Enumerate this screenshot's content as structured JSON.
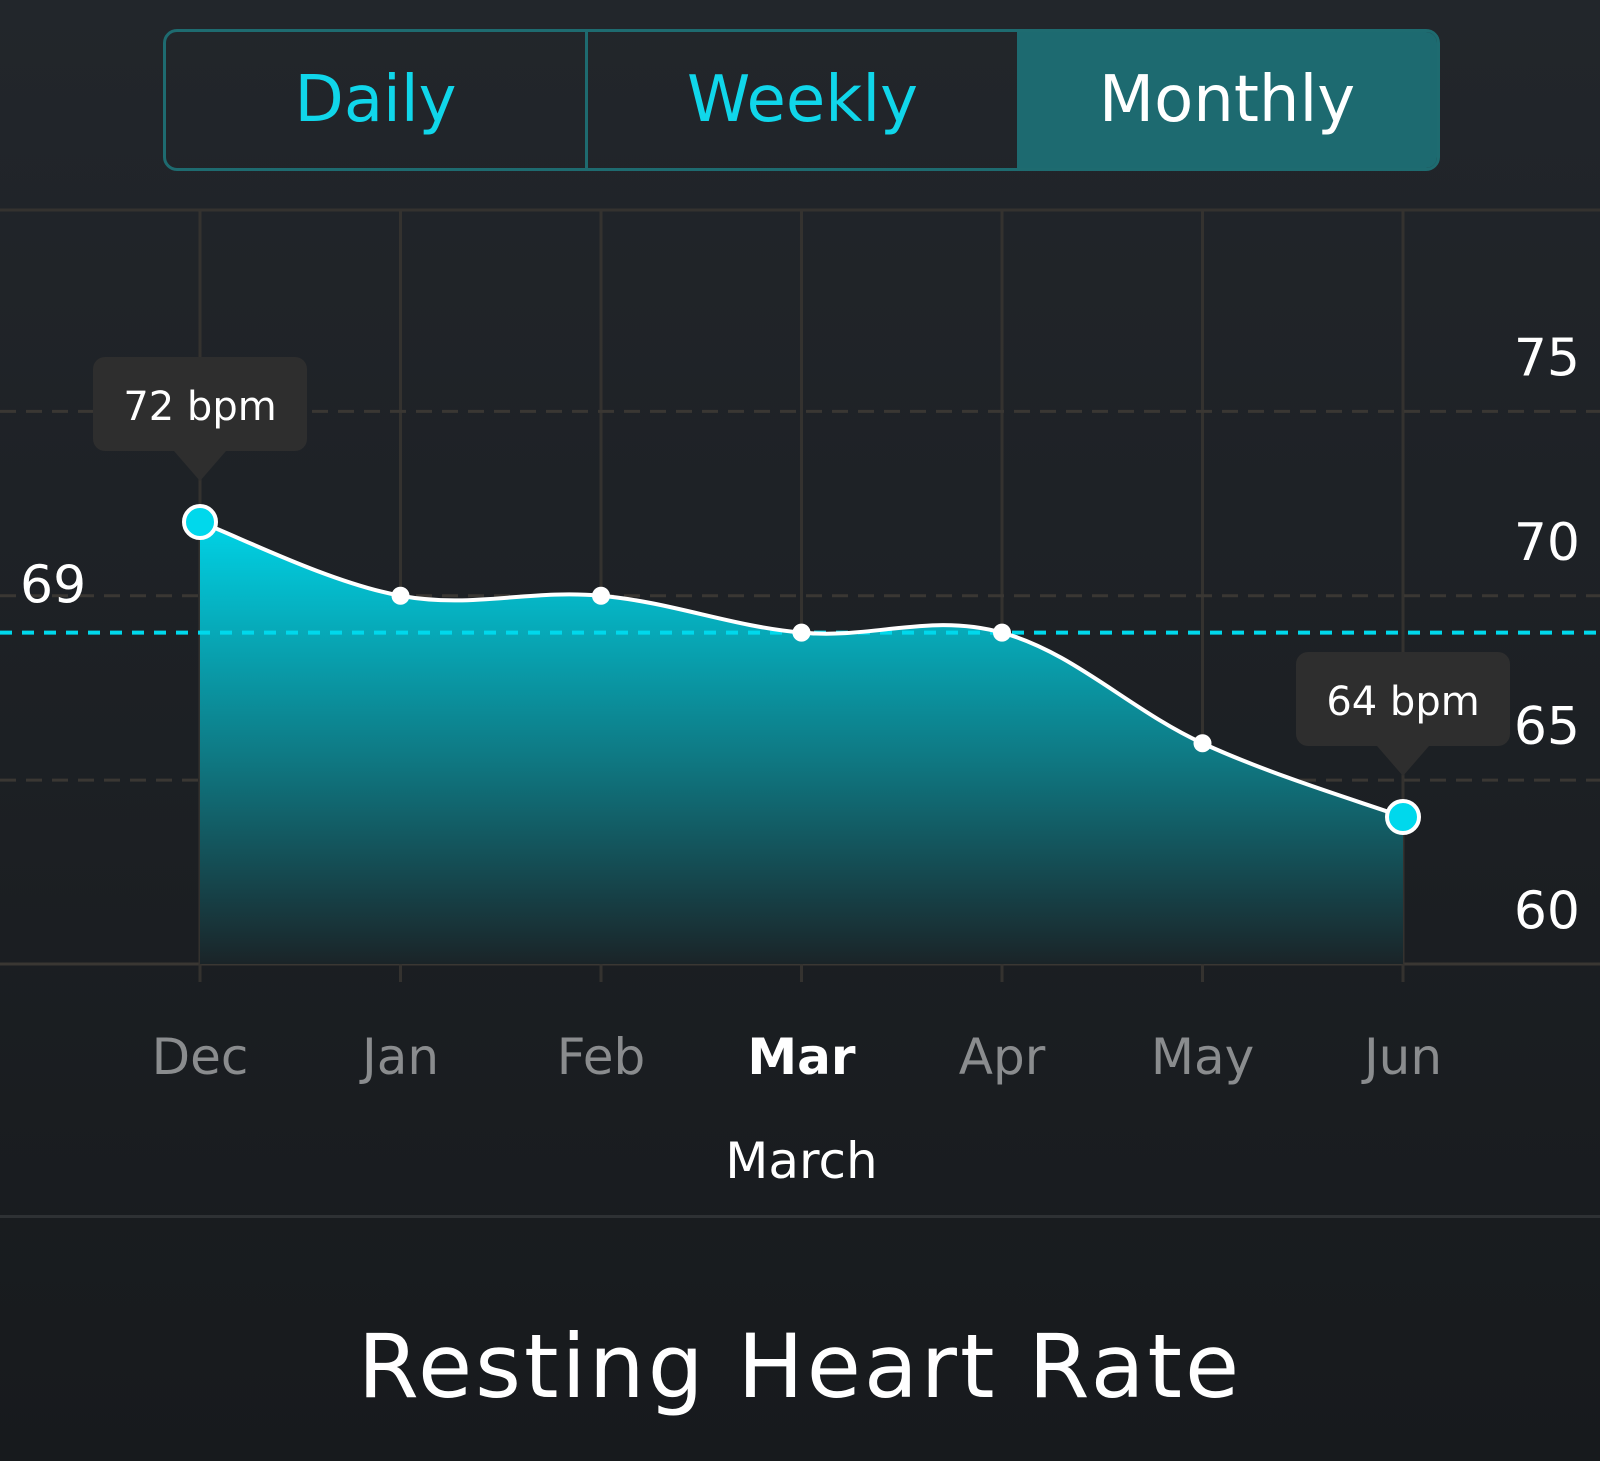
{
  "tabs": [
    {
      "label": "Daily",
      "active": false
    },
    {
      "label": "Weekly",
      "active": false
    },
    {
      "label": "Monthly",
      "active": true
    }
  ],
  "colors": {
    "accent": "#00d8ec",
    "active_tab_bg": "#1d6a70",
    "tooltip_bg": "#2e2e2e"
  },
  "chart_data": {
    "type": "area",
    "title": "Resting Heart Rate",
    "categories": [
      "Dec",
      "Jan",
      "Feb",
      "Mar",
      "Apr",
      "May",
      "Jun"
    ],
    "values": [
      72,
      70,
      70,
      69,
      69,
      66,
      64
    ],
    "selected_category": "Mar",
    "selected_label": "March",
    "yticks": [
      75,
      70,
      65,
      60
    ],
    "ylim": [
      60,
      80
    ],
    "average": {
      "value": 69,
      "label": "69"
    },
    "annotations": [
      {
        "category": "Dec",
        "text": "72 bpm"
      },
      {
        "category": "Jun",
        "text": "64 bpm"
      }
    ],
    "grid": true,
    "y_axis_side": "right"
  }
}
